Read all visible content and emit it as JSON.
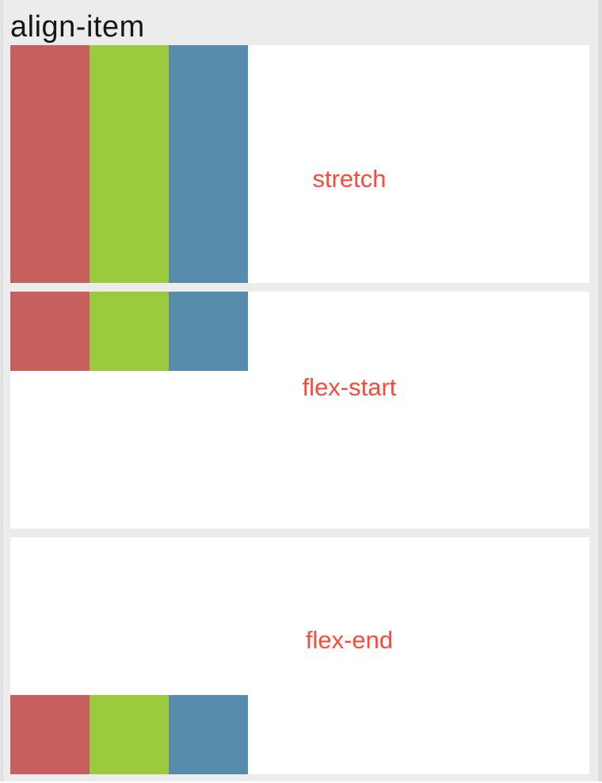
{
  "page": {
    "title": "align-item"
  },
  "colors": {
    "background": "#ececec",
    "panel_background": "#ffffff",
    "title_text": "#161616",
    "label_text": "#f84b3a",
    "bar_red": "#c75f5f",
    "bar_green": "#9aca3e",
    "bar_blue": "#588cac"
  },
  "sections": [
    {
      "label": "stretch"
    },
    {
      "label": "flex-start"
    },
    {
      "label": "flex-end"
    }
  ]
}
